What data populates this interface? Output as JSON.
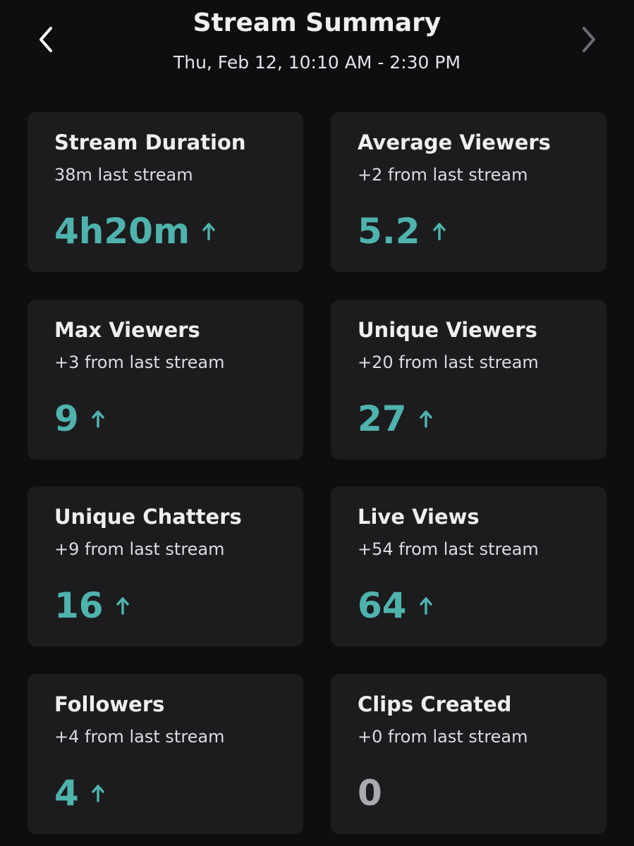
{
  "header": {
    "title": "Stream Summary",
    "subtitle": "Thu, Feb 12, 10:10 AM - 2:30 PM"
  },
  "cards": [
    {
      "title": "Stream Duration",
      "comparison": "38m last stream",
      "value": "4h20m",
      "arrow": true,
      "color": "#4fb3ad"
    },
    {
      "title": "Average Viewers",
      "comparison": "+2 from last stream",
      "value": "5.2",
      "arrow": true,
      "color": "#4fb3ad"
    },
    {
      "title": "Max Viewers",
      "comparison": "+3 from last stream",
      "value": "9",
      "arrow": true,
      "color": "#4fb3ad"
    },
    {
      "title": "Unique Viewers",
      "comparison": "+20 from last stream",
      "value": "27",
      "arrow": true,
      "color": "#4fb3ad"
    },
    {
      "title": "Unique Chatters",
      "comparison": "+9 from last stream",
      "value": "16",
      "arrow": true,
      "color": "#4fb3ad"
    },
    {
      "title": "Live Views",
      "comparison": "+54 from last stream",
      "value": "64",
      "arrow": true,
      "color": "#4fb3ad"
    },
    {
      "title": "Followers",
      "comparison": "+4 from last stream",
      "value": "4",
      "arrow": true,
      "color": "#4fb3ad"
    },
    {
      "title": "Clips Created",
      "comparison": "+0 from last stream",
      "value": "0",
      "arrow": false,
      "color": "#a9a9ae"
    }
  ]
}
